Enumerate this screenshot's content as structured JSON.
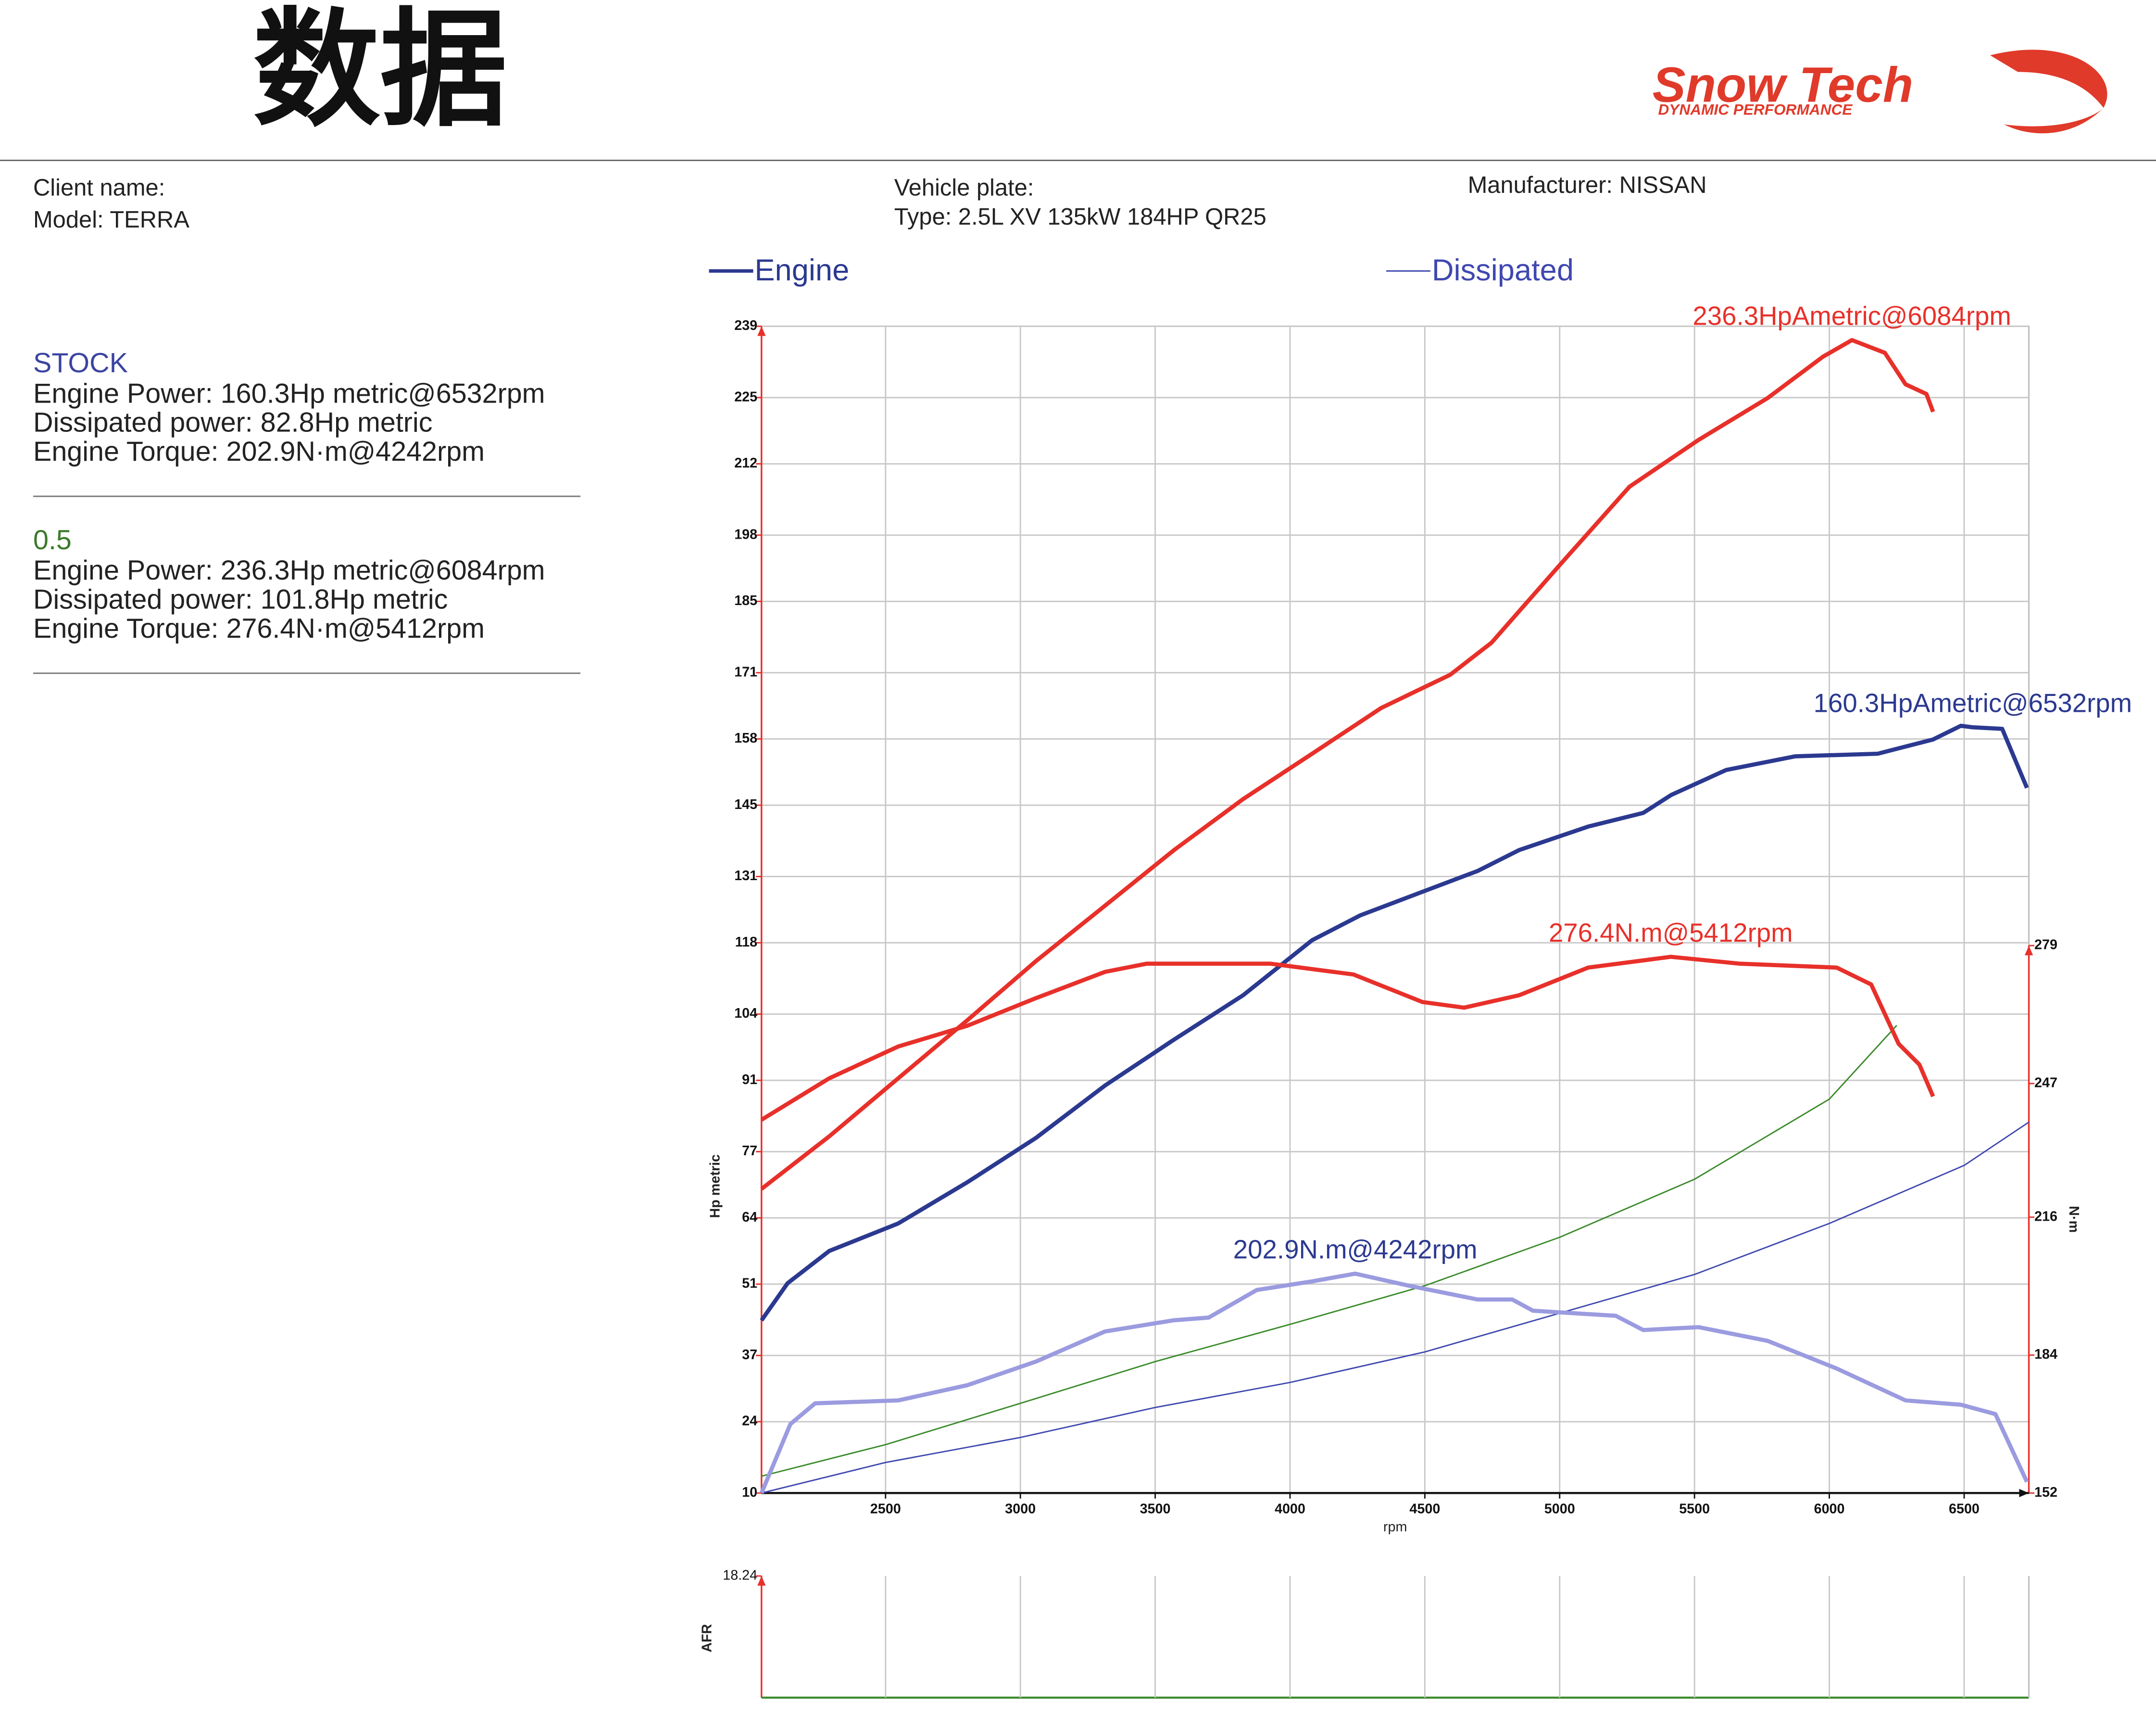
{
  "header": {
    "title": "数据",
    "logo": "Snow Tech",
    "logo_sub": "DYNAMIC PERFORMANCE"
  },
  "info": {
    "client": "Client name:",
    "model": "Model: TERRA",
    "plate": "Vehicle plate:",
    "type": "Type: 2.5L  XV 135kW 184HP QR25",
    "manufacturer": "Manufacturer: NISSAN"
  },
  "runs": [
    {
      "name": "STOCK",
      "color": "#3a44a0",
      "lines": [
        "Engine Power: 160.3Hp metric@6532rpm",
        "Dissipated power: 82.8Hp metric",
        "Engine Torque: 202.9N·m@4242rpm"
      ]
    },
    {
      "name": "0.5",
      "color": "#3a7a2a",
      "lines": [
        "Engine Power: 236.3Hp metric@6084rpm",
        "Dissipated power: 101.8Hp metric",
        "Engine Torque: 276.4N·m@5412rpm"
      ]
    }
  ],
  "chart_data": [
    {
      "type": "line",
      "xlabel": "rpm",
      "ylabel": "Hp metric",
      "y2label": "N·m",
      "xlim": [
        2040,
        6740
      ],
      "xticks": [
        2500,
        3000,
        3500,
        4000,
        4500,
        5000,
        5500,
        6000,
        6500
      ],
      "ylim": [
        10,
        239
      ],
      "yticks": [
        10,
        24,
        37,
        51,
        64,
        77,
        91,
        104,
        118,
        131,
        145,
        158,
        171,
        185,
        198,
        212,
        225,
        239
      ],
      "y2lim": [
        152,
        279
      ],
      "y2ticks": [
        152,
        184,
        216,
        247,
        279
      ],
      "grid": true,
      "series": [
        {
          "name": "Engine",
          "color": "#2b3990",
          "x": [
            2040,
            2137,
            2291,
            2547,
            2803,
            3058,
            3314,
            3570,
            3826,
            4082,
            4261,
            4491,
            4696,
            4850,
            5106,
            5310,
            5413,
            5617,
            5873,
            6180,
            6385,
            6488,
            6532,
            6641,
            6733
          ],
          "values": [
            43.9,
            51.2,
            57.5,
            62.9,
            71,
            79.7,
            90,
            99,
            107.7,
            118.5,
            123.4,
            128,
            132.1,
            136.2,
            140.8,
            143.5,
            147,
            151.9,
            154.6,
            155.1,
            157.9,
            160.6,
            160.3,
            160,
            148.4
          ]
        },
        {
          "color": "#e8302a",
          "x": [
            2040,
            2291,
            2547,
            2803,
            3058,
            3314,
            3570,
            3826,
            4082,
            4338,
            4594,
            4747,
            5003,
            5259,
            5515,
            5771,
            5976,
            6084,
            6206,
            6283,
            6360,
            6385
          ],
          "values": [
            69.7,
            80,
            91.4,
            102.8,
            114.4,
            125.3,
            136.2,
            146.2,
            155.1,
            164.1,
            170.6,
            176.9,
            192.3,
            207.5,
            216.7,
            224.9,
            233,
            236.3,
            233.8,
            227.6,
            225.7,
            222.2
          ]
        },
        {
          "name": "Dissipated",
          "color": "#3f48b0",
          "x": [
            2040,
            2500,
            3000,
            3500,
            4000,
            4500,
            5000,
            5500,
            6000,
            6500,
            6740
          ],
          "values": [
            10,
            16,
            20.9,
            26.8,
            31.7,
            37.7,
            45.3,
            52.9,
            62.9,
            74.3,
            82.8
          ]
        },
        {
          "color": "#3a8a2a",
          "x": [
            2040,
            2500,
            3000,
            3500,
            4000,
            4500,
            5000,
            5500,
            6000,
            6250
          ],
          "values": [
            13.3,
            19.5,
            27.6,
            35.8,
            43.1,
            50.7,
            60.2,
            71.6,
            87.3,
            101.8
          ]
        },
        {
          "color": "#9b9be0",
          "axis": "y2",
          "x": [
            2040,
            2147,
            2239,
            2547,
            2803,
            3058,
            3314,
            3570,
            3698,
            3877,
            4082,
            4242,
            4440,
            4696,
            4824,
            4901,
            5208,
            5310,
            5515,
            5771,
            6027,
            6283,
            6488,
            6616,
            6733
          ],
          "values": [
            152,
            168,
            172.8,
            173.5,
            177,
            182.5,
            189.5,
            192.1,
            192.7,
            199.1,
            201.1,
            202.9,
            200.1,
            196.9,
            196.9,
            194.3,
            193.1,
            189.8,
            190.5,
            187.3,
            180.9,
            173.5,
            172.5,
            170.3,
            154.6
          ]
        },
        {
          "color": "#e8302a",
          "axis": "y2",
          "x": [
            2040,
            2291,
            2547,
            2803,
            3058,
            3314,
            3468,
            3928,
            4235,
            4491,
            4645,
            4850,
            5106,
            5412,
            5669,
            6027,
            6155,
            6257,
            6334,
            6385
          ],
          "values": [
            238.6,
            248.2,
            255.6,
            260.4,
            266.8,
            272.9,
            274.8,
            274.8,
            272.3,
            265.9,
            264.6,
            267.5,
            273.9,
            276.4,
            274.8,
            273.9,
            270,
            256.2,
            251.4,
            244
          ]
        }
      ],
      "annotations": [
        {
          "text": "236.3HpAmetric@6084rpm",
          "x": 6084,
          "y": 236.3,
          "color": "#e8302a"
        },
        {
          "text": "160.3HpAmetric@6532rpm",
          "x": 6532,
          "y": 160.3,
          "color": "#2b3990"
        },
        {
          "text": "276.4N.m@5412rpm",
          "x": 5412,
          "y": 276.4,
          "axis": "y2",
          "color": "#e8302a"
        },
        {
          "text": "202.9N.m@4242rpm",
          "x": 4242,
          "y": 202.9,
          "axis": "y2",
          "color": "#2b3990"
        }
      ]
    },
    {
      "type": "axis",
      "ylabel": "AFR",
      "yticks": [
        18.24
      ]
    }
  ]
}
